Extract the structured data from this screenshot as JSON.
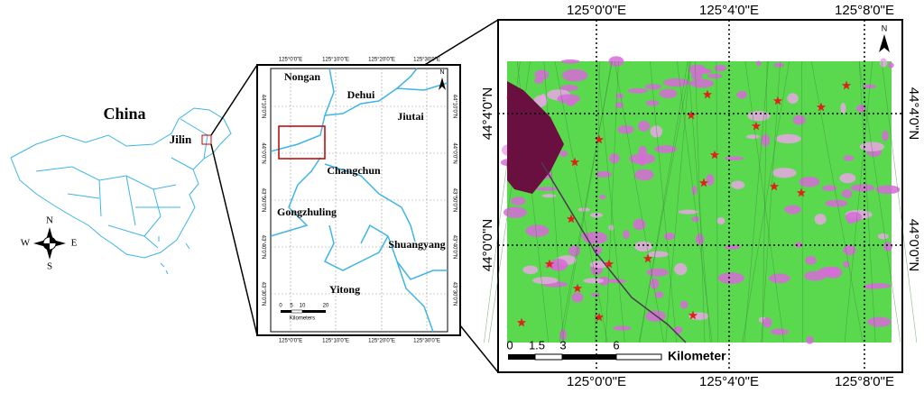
{
  "overview": {
    "country": "China",
    "province": "Jilin",
    "compass": {
      "north": "N",
      "east": "E",
      "south": "S",
      "west": "W"
    }
  },
  "region_map": {
    "lon_ticks": [
      "125°0'0\"E",
      "125°10'0\"E",
      "125°20'0\"E",
      "125°30'0\"E"
    ],
    "lat_ticks": [
      "44°10'0\"N",
      "44°0'0\"N",
      "43°50'0\"N",
      "43°40'0\"N",
      "43°30'0\"N"
    ],
    "places": [
      "Nongan",
      "Dehui",
      "Jiutai",
      "Changchun",
      "Gongzhuling",
      "Shuangyang",
      "Yitong"
    ],
    "scale": {
      "ticks": [
        "0",
        "5",
        "10",
        "20"
      ],
      "unit": "Kilometers"
    },
    "north": "N"
  },
  "study_area": {
    "lon_ticks": [
      "125°0'0\"E",
      "125°4'0\"E",
      "125°8'0\"E"
    ],
    "lat_ticks": [
      "44°4'0\"N",
      "44°0'0\"N"
    ],
    "scale": {
      "ticks": [
        "0",
        "1.5",
        "3",
        "6"
      ],
      "unit": "Kilometer"
    },
    "north": "N"
  }
}
